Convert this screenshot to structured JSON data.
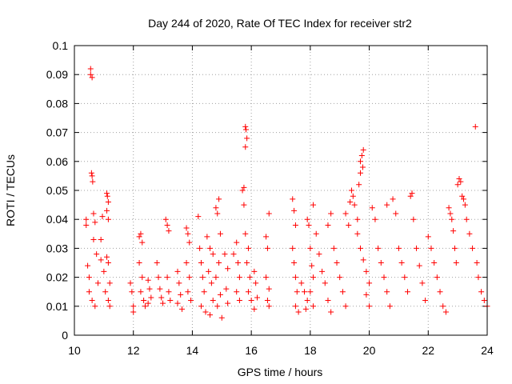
{
  "chart_data": {
    "type": "scatter",
    "title": "Day 244 of 2020, Rate Of TEC Index for receiver str2",
    "xlabel": "GPS time / hours",
    "ylabel": "ROTI / TECUs",
    "xlim": [
      10,
      24
    ],
    "ylim": [
      0,
      0.1
    ],
    "x_ticks": [
      10,
      12,
      14,
      16,
      18,
      20,
      22,
      24
    ],
    "y_ticks": [
      0,
      0.01,
      0.02,
      0.03,
      0.04,
      0.05,
      0.06,
      0.07,
      0.08,
      0.09,
      0.1
    ],
    "x_tick_labels": [
      "10",
      "12",
      "14",
      "16",
      "18",
      "20",
      "22",
      "24"
    ],
    "y_tick_labels": [
      "0",
      "0.01",
      "0.02",
      "0.03",
      "0.04",
      "0.05",
      "0.06",
      "0.07",
      "0.08",
      "0.09",
      "0.1"
    ],
    "grid": true,
    "marker": "plus",
    "color": "#ff0000",
    "series": [
      {
        "points": [
          [
            10.4,
            0.04
          ],
          [
            10.4,
            0.038
          ],
          [
            10.45,
            0.024
          ],
          [
            10.5,
            0.015
          ],
          [
            10.55,
            0.092
          ],
          [
            10.55,
            0.09
          ],
          [
            10.6,
            0.089
          ],
          [
            10.58,
            0.056
          ],
          [
            10.6,
            0.055
          ],
          [
            10.62,
            0.053
          ],
          [
            10.65,
            0.042
          ],
          [
            10.7,
            0.039
          ],
          [
            10.65,
            0.033
          ],
          [
            10.75,
            0.028
          ],
          [
            10.5,
            0.02
          ],
          [
            10.6,
            0.012
          ],
          [
            10.7,
            0.01
          ],
          [
            10.8,
            0.018
          ],
          [
            10.9,
            0.033
          ],
          [
            10.95,
            0.041
          ],
          [
            10.9,
            0.026
          ],
          [
            11.0,
            0.022
          ],
          [
            11.05,
            0.015
          ],
          [
            11.1,
            0.049
          ],
          [
            11.12,
            0.048
          ],
          [
            11.15,
            0.046
          ],
          [
            11.1,
            0.043
          ],
          [
            11.15,
            0.04
          ],
          [
            11.1,
            0.027
          ],
          [
            11.15,
            0.025
          ],
          [
            11.2,
            0.018
          ],
          [
            11.15,
            0.012
          ],
          [
            11.2,
            0.01
          ],
          [
            11.9,
            0.018
          ],
          [
            11.95,
            0.015
          ],
          [
            12.0,
            0.01
          ],
          [
            12.0,
            0.008
          ],
          [
            12.2,
            0.034
          ],
          [
            12.25,
            0.035
          ],
          [
            12.3,
            0.032
          ],
          [
            12.2,
            0.025
          ],
          [
            12.3,
            0.02
          ],
          [
            12.25,
            0.015
          ],
          [
            12.35,
            0.012
          ],
          [
            12.4,
            0.01
          ],
          [
            12.5,
            0.019
          ],
          [
            12.55,
            0.016
          ],
          [
            12.6,
            0.013
          ],
          [
            12.5,
            0.011
          ],
          [
            12.8,
            0.025
          ],
          [
            12.85,
            0.02
          ],
          [
            12.9,
            0.016
          ],
          [
            12.95,
            0.013
          ],
          [
            13.0,
            0.011
          ],
          [
            13.1,
            0.04
          ],
          [
            13.15,
            0.038
          ],
          [
            13.2,
            0.036
          ],
          [
            13.15,
            0.02
          ],
          [
            13.2,
            0.015
          ],
          [
            13.25,
            0.012
          ],
          [
            13.5,
            0.022
          ],
          [
            13.55,
            0.018
          ],
          [
            13.6,
            0.014
          ],
          [
            13.5,
            0.011
          ],
          [
            13.65,
            0.009
          ],
          [
            13.8,
            0.037
          ],
          [
            13.85,
            0.035
          ],
          [
            13.9,
            0.032
          ],
          [
            13.8,
            0.025
          ],
          [
            13.9,
            0.02
          ],
          [
            13.85,
            0.015
          ],
          [
            13.95,
            0.012
          ],
          [
            14.2,
            0.041
          ],
          [
            14.25,
            0.03
          ],
          [
            14.3,
            0.025
          ],
          [
            14.35,
            0.02
          ],
          [
            14.4,
            0.015
          ],
          [
            14.3,
            0.01
          ],
          [
            14.45,
            0.008
          ],
          [
            14.5,
            0.034
          ],
          [
            14.6,
            0.03
          ],
          [
            14.7,
            0.028
          ],
          [
            14.55,
            0.022
          ],
          [
            14.65,
            0.018
          ],
          [
            14.7,
            0.012
          ],
          [
            14.6,
            0.007
          ],
          [
            14.8,
            0.044
          ],
          [
            14.85,
            0.042
          ],
          [
            14.9,
            0.047
          ],
          [
            14.95,
            0.035
          ],
          [
            14.9,
            0.025
          ],
          [
            14.8,
            0.02
          ],
          [
            14.95,
            0.014
          ],
          [
            14.85,
            0.01
          ],
          [
            15.0,
            0.006
          ],
          [
            15.1,
            0.028
          ],
          [
            15.2,
            0.023
          ],
          [
            15.15,
            0.016
          ],
          [
            15.2,
            0.011
          ],
          [
            15.4,
            0.028
          ],
          [
            15.5,
            0.032
          ],
          [
            15.55,
            0.025
          ],
          [
            15.6,
            0.02
          ],
          [
            15.5,
            0.015
          ],
          [
            15.6,
            0.012
          ],
          [
            15.7,
            0.05
          ],
          [
            15.75,
            0.051
          ],
          [
            15.8,
            0.072
          ],
          [
            15.82,
            0.071
          ],
          [
            15.85,
            0.068
          ],
          [
            15.8,
            0.065
          ],
          [
            15.75,
            0.045
          ],
          [
            15.8,
            0.035
          ],
          [
            15.9,
            0.03
          ],
          [
            15.85,
            0.025
          ],
          [
            15.95,
            0.02
          ],
          [
            15.9,
            0.015
          ],
          [
            16.0,
            0.012
          ],
          [
            16.1,
            0.022
          ],
          [
            16.15,
            0.018
          ],
          [
            16.2,
            0.013
          ],
          [
            16.1,
            0.009
          ],
          [
            16.5,
            0.034
          ],
          [
            16.55,
            0.03
          ],
          [
            16.6,
            0.042
          ],
          [
            16.5,
            0.02
          ],
          [
            16.6,
            0.016
          ],
          [
            16.55,
            0.012
          ],
          [
            16.6,
            0.01
          ],
          [
            17.4,
            0.047
          ],
          [
            17.45,
            0.043
          ],
          [
            17.5,
            0.038
          ],
          [
            17.4,
            0.03
          ],
          [
            17.45,
            0.025
          ],
          [
            17.5,
            0.02
          ],
          [
            17.55,
            0.015
          ],
          [
            17.5,
            0.01
          ],
          [
            17.6,
            0.008
          ],
          [
            17.7,
            0.018
          ],
          [
            17.8,
            0.015
          ],
          [
            17.9,
            0.012
          ],
          [
            17.85,
            0.009
          ],
          [
            17.9,
            0.04
          ],
          [
            17.95,
            0.038
          ],
          [
            18.0,
            0.03
          ],
          [
            18.05,
            0.024
          ],
          [
            18.1,
            0.02
          ],
          [
            18.0,
            0.015
          ],
          [
            18.1,
            0.01
          ],
          [
            18.1,
            0.045
          ],
          [
            18.2,
            0.035
          ],
          [
            18.3,
            0.028
          ],
          [
            18.4,
            0.022
          ],
          [
            18.5,
            0.018
          ],
          [
            18.6,
            0.012
          ],
          [
            18.7,
            0.008
          ],
          [
            18.6,
            0.038
          ],
          [
            18.7,
            0.042
          ],
          [
            18.8,
            0.03
          ],
          [
            18.9,
            0.025
          ],
          [
            19.0,
            0.02
          ],
          [
            19.1,
            0.015
          ],
          [
            19.2,
            0.01
          ],
          [
            19.2,
            0.042
          ],
          [
            19.3,
            0.038
          ],
          [
            19.35,
            0.046
          ],
          [
            19.4,
            0.05
          ],
          [
            19.45,
            0.048
          ],
          [
            19.5,
            0.045
          ],
          [
            19.6,
            0.04
          ],
          [
            19.7,
            0.06
          ],
          [
            19.75,
            0.062
          ],
          [
            19.8,
            0.064
          ],
          [
            19.78,
            0.058
          ],
          [
            19.7,
            0.056
          ],
          [
            19.65,
            0.052
          ],
          [
            19.6,
            0.035
          ],
          [
            19.7,
            0.03
          ],
          [
            19.8,
            0.026
          ],
          [
            19.9,
            0.022
          ],
          [
            20.0,
            0.018
          ],
          [
            19.9,
            0.014
          ],
          [
            20.0,
            0.01
          ],
          [
            20.1,
            0.044
          ],
          [
            20.2,
            0.04
          ],
          [
            20.3,
            0.03
          ],
          [
            20.4,
            0.025
          ],
          [
            20.5,
            0.02
          ],
          [
            20.6,
            0.015
          ],
          [
            20.7,
            0.01
          ],
          [
            20.6,
            0.045
          ],
          [
            20.8,
            0.047
          ],
          [
            20.9,
            0.042
          ],
          [
            21.0,
            0.03
          ],
          [
            21.1,
            0.025
          ],
          [
            21.2,
            0.02
          ],
          [
            21.3,
            0.015
          ],
          [
            21.4,
            0.048
          ],
          [
            21.45,
            0.049
          ],
          [
            21.5,
            0.04
          ],
          [
            21.6,
            0.03
          ],
          [
            21.7,
            0.024
          ],
          [
            21.8,
            0.018
          ],
          [
            21.9,
            0.012
          ],
          [
            22.0,
            0.034
          ],
          [
            22.1,
            0.03
          ],
          [
            22.2,
            0.025
          ],
          [
            22.3,
            0.02
          ],
          [
            22.4,
            0.015
          ],
          [
            22.5,
            0.01
          ],
          [
            22.6,
            0.008
          ],
          [
            22.7,
            0.044
          ],
          [
            22.75,
            0.042
          ],
          [
            22.8,
            0.04
          ],
          [
            22.85,
            0.036
          ],
          [
            22.9,
            0.03
          ],
          [
            22.95,
            0.025
          ],
          [
            23.0,
            0.052
          ],
          [
            23.05,
            0.054
          ],
          [
            23.1,
            0.053
          ],
          [
            23.15,
            0.048
          ],
          [
            23.2,
            0.047
          ],
          [
            23.25,
            0.045
          ],
          [
            23.3,
            0.04
          ],
          [
            23.4,
            0.035
          ],
          [
            23.5,
            0.03
          ],
          [
            23.6,
            0.072
          ],
          [
            23.65,
            0.025
          ],
          [
            23.7,
            0.02
          ],
          [
            23.8,
            0.015
          ],
          [
            23.9,
            0.012
          ],
          [
            24.0,
            0.01
          ]
        ]
      }
    ]
  }
}
